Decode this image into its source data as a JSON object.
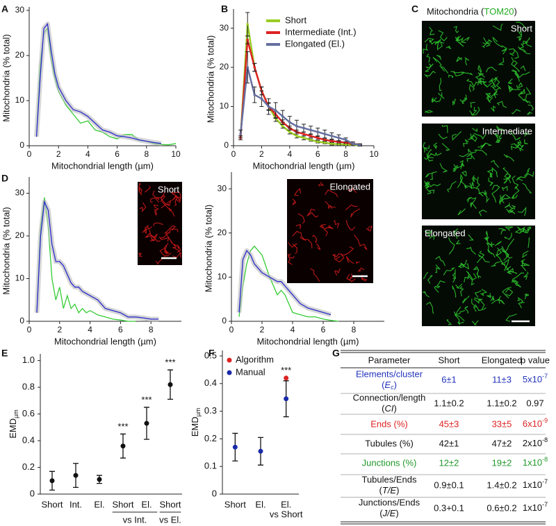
{
  "panels": [
    "A",
    "B",
    "C",
    "D",
    "E",
    "F",
    "G"
  ],
  "chart_data": [
    {
      "type": "line",
      "xlabel": "Mitochondrial length (µm)",
      "ylabel": "Mitochondria (% total)",
      "xlim": [
        0,
        10
      ],
      "ylim": [
        0,
        30
      ],
      "xticks": [
        0,
        2,
        4,
        6,
        8,
        10
      ],
      "yticks": [
        0,
        10,
        20,
        30
      ],
      "x": [
        0.5,
        0.75,
        1,
        1.25,
        1.5,
        1.75,
        2,
        2.5,
        3,
        3.5,
        4,
        4.5,
        5,
        5.5,
        6,
        6.5,
        7,
        7.5,
        8,
        8.5,
        9,
        9.5,
        10
      ],
      "series": [
        {
          "color": "#33cc33",
          "values": [
            2,
            18,
            25,
            26,
            19,
            15,
            12,
            9,
            7,
            5,
            5.5,
            3.5,
            3,
            2,
            1.5,
            2.5,
            2.5,
            1.2,
            1,
            0.5,
            0.3,
            0.2,
            0.5
          ]
        },
        {
          "color": "#2a2acc",
          "values": [
            2,
            15,
            26,
            27,
            21,
            16,
            13,
            10,
            8,
            7.5,
            6.5,
            5,
            3.5,
            3,
            2.2,
            2,
            1.7,
            1.3,
            1,
            0.7,
            0.5,
            null,
            null
          ]
        }
      ]
    },
    {
      "type": "line",
      "xlabel": "Mitochondrial length (µm)",
      "ylabel": "Mitochondria (% total)",
      "xlim": [
        0,
        10
      ],
      "ylim": [
        0,
        34
      ],
      "xticks": [
        0,
        2,
        4,
        6,
        8,
        10
      ],
      "yticks": [
        0,
        10,
        20,
        30
      ],
      "legend": "upper right",
      "x": [
        0.5,
        1,
        1.5,
        2,
        2.5,
        3,
        3.5,
        4,
        4.5,
        5,
        5.5,
        6,
        6.5,
        7,
        7.5,
        8,
        8.5,
        9
      ],
      "series": [
        {
          "name": "Short",
          "color": "#99cc22",
          "values": [
            2,
            31,
            20,
            14,
            10,
            7,
            5,
            3.5,
            2.5,
            2,
            1.5,
            1,
            0.8,
            0.5,
            0.4,
            0.3,
            0.2,
            0.1
          ],
          "errors": [
            0.5,
            3,
            1,
            1,
            1,
            0.8,
            0.5,
            0.5,
            0.5,
            0.5,
            0.3,
            0.3,
            0.3,
            0.3,
            0.2,
            0.2,
            0.2,
            0.1
          ]
        },
        {
          "name": "Intermediate (Int.)",
          "color": "#dd2222",
          "values": [
            2,
            27,
            20,
            14,
            10,
            8,
            6,
            4.5,
            3.5,
            3,
            2.5,
            2,
            1.5,
            1.2,
            1,
            0.8,
            0.5,
            0.3
          ],
          "errors": [
            0.5,
            1,
            1,
            1,
            0.8,
            0.8,
            0.6,
            0.5,
            0.5,
            0.5,
            0.4,
            0.4,
            0.3,
            0.3,
            0.3,
            0.2,
            0.2,
            0.1
          ]
        },
        {
          "name": "Elongated (El.)",
          "color": "#6670a0",
          "values": [
            3,
            20,
            13,
            12,
            10,
            9,
            7.5,
            6,
            5,
            4.5,
            4,
            3.5,
            3,
            2.5,
            2,
            1.5,
            0.5,
            0.2
          ],
          "errors": [
            1,
            4,
            2,
            2,
            2,
            2,
            1.5,
            1.5,
            1.5,
            1,
            1,
            1,
            1,
            0.8,
            0.8,
            0.5,
            0.5,
            0.3
          ]
        }
      ]
    },
    {
      "type": "line",
      "xlabel": "Mitochondrial length (µm)",
      "ylabel": "Mitochondria (% total)",
      "inset_label": "Short",
      "xlim": [
        0,
        10
      ],
      "ylim": [
        0,
        33
      ],
      "xticks": [
        0,
        2,
        4,
        6,
        8
      ],
      "yticks": [
        0,
        10,
        20,
        30
      ],
      "x": [
        0.5,
        0.75,
        1,
        1.25,
        1.5,
        1.75,
        2,
        2.25,
        2.5,
        2.75,
        3,
        3.25,
        3.5,
        3.75,
        4,
        4.5,
        5,
        5.5,
        6,
        6.5,
        7,
        7.5,
        8,
        8.5
      ],
      "series": [
        {
          "color": "#33cc33",
          "values": [
            2,
            22,
            29,
            22,
            10,
            5,
            8,
            3,
            6,
            3,
            4,
            2,
            3,
            2,
            2.5,
            1.5,
            1,
            0.5,
            0.3,
            0,
            0,
            null,
            null,
            null
          ]
        },
        {
          "color": "#2a2acc",
          "values": [
            2,
            20,
            28,
            26,
            18,
            14,
            14,
            13,
            11,
            9,
            8,
            8,
            7,
            6.5,
            6,
            5,
            3,
            2.5,
            2,
            1,
            1,
            0.8,
            0.5,
            0.5
          ]
        }
      ]
    },
    {
      "type": "line",
      "xlabel": "Mitochondrial length (µm)",
      "ylabel": "Mitochondria (% total)",
      "inset_label": "Elongated",
      "xlim": [
        0,
        10
      ],
      "ylim": [
        0,
        33
      ],
      "xticks": [
        0,
        2,
        4,
        6,
        8
      ],
      "yticks": [
        0,
        10,
        20,
        30
      ],
      "x": [
        0.5,
        0.75,
        1,
        1.25,
        1.5,
        1.75,
        2,
        2.5,
        3,
        3.25,
        3.5,
        4,
        4.5,
        5,
        5.5,
        6,
        6.5,
        7
      ],
      "series": [
        {
          "color": "#33cc33",
          "values": [
            1,
            8,
            13,
            16,
            17,
            16,
            15,
            10,
            6,
            7,
            6,
            2,
            1.5,
            1,
            1,
            0.5,
            0.2,
            0
          ]
        },
        {
          "color": "#2a2acc",
          "values": [
            2,
            14,
            16,
            15,
            13,
            12,
            11,
            10,
            9,
            9,
            8,
            6,
            4,
            3,
            2.5,
            2,
            1.5,
            null
          ]
        }
      ]
    },
    {
      "type": "dot",
      "ylabel": "EMD",
      "ylabel_sub": "µm",
      "ylim": [
        0,
        1.05
      ],
      "yticks": [
        0,
        0.2,
        0.4,
        0.6,
        0.8,
        {
          "value": 1,
          "label": "1.0"
        }
      ],
      "categories": [
        "Short",
        "Int.",
        "El.",
        "Short",
        "El.",
        "Short"
      ],
      "groups": [
        {
          "label": "vs Int.",
          "span": [
            3,
            4
          ]
        },
        {
          "label": "vs El.",
          "span": [
            5,
            5
          ]
        }
      ],
      "group_rule": true,
      "annotations": [
        null,
        null,
        null,
        "***",
        "***",
        "***"
      ],
      "series": [
        {
          "color": "#111111",
          "values": [
            0.1,
            0.14,
            0.11,
            0.36,
            0.53,
            0.82
          ],
          "errors": [
            0.07,
            0.09,
            0.03,
            0.09,
            0.12,
            0.11
          ]
        }
      ]
    },
    {
      "type": "dot",
      "ylabel": "EMD",
      "ylabel_sub": "µm",
      "ylim": [
        0,
        0.52
      ],
      "yticks": [
        0,
        0.1,
        0.2,
        0.3,
        0.4,
        0.5
      ],
      "legend": "upper left",
      "categories": [
        "Short",
        "El.",
        "El."
      ],
      "groups": [
        {
          "label": "vs Short",
          "span": [
            2,
            2
          ]
        }
      ],
      "group_rule": false,
      "annotations": [
        null,
        null,
        "***"
      ],
      "series": [
        {
          "name": "Algorithm",
          "color": "#dd2222",
          "values": [
            null,
            null,
            0.42
          ],
          "errors": [
            null,
            null,
            null
          ]
        },
        {
          "name": "Manual",
          "color": "#1a2aa8",
          "values": [
            0.17,
            0.155,
            0.345
          ],
          "errors": [
            0.05,
            0.05,
            0.065
          ]
        }
      ]
    }
  ],
  "images": {
    "title": [
      "Mitochondria (",
      "TOM20",
      ")"
    ],
    "title_color": "#22aa22",
    "labels": [
      "Short",
      "Intermediate",
      "Elongated"
    ]
  },
  "table": {
    "columns": [
      "Parameter",
      "Short",
      "Elongated",
      "p value"
    ],
    "rows": [
      {
        "color": "#2233bb",
        "parameter": "Elements/cluster",
        "symbol": "E",
        "symbol_sub": "c",
        "short": "6±1",
        "elongated": "11±3",
        "p": {
          "base": "5x10",
          "exp": "-7"
        }
      },
      {
        "color": "#111111",
        "parameter": "Connection/length",
        "symbol": "CI",
        "short": "1.1±0.2",
        "elongated": "1.1±0.2",
        "p": "0.97"
      },
      {
        "color": "#dd2222",
        "parameter": "Ends (%)",
        "short": "45±3",
        "elongated": "33±5",
        "p": {
          "base": "6x10",
          "exp": "-9"
        }
      },
      {
        "color": "#111111",
        "parameter": "Tubules (%)",
        "short": "42±1",
        "elongated": "47±2",
        "p": {
          "base": "2x10",
          "exp": "-8"
        }
      },
      {
        "color": "#22992a",
        "parameter": "Junctions (%)",
        "short": "12±2",
        "elongated": "19±2",
        "p": {
          "base": "1x10",
          "exp": "-8"
        }
      },
      {
        "color": "#111111",
        "parameter": "Tubules/Ends",
        "symbol": "T/E",
        "short": "0.9±0.1",
        "elongated": "1.4±0.2",
        "p": {
          "base": "1x10",
          "exp": "-7"
        }
      },
      {
        "color": "#111111",
        "parameter": "Junctions/Ends",
        "symbol": "J/E",
        "short": "0.3+0.1",
        "elongated": "0.6±0.2",
        "p": {
          "base": "1x10",
          "exp": "-7"
        }
      }
    ]
  }
}
